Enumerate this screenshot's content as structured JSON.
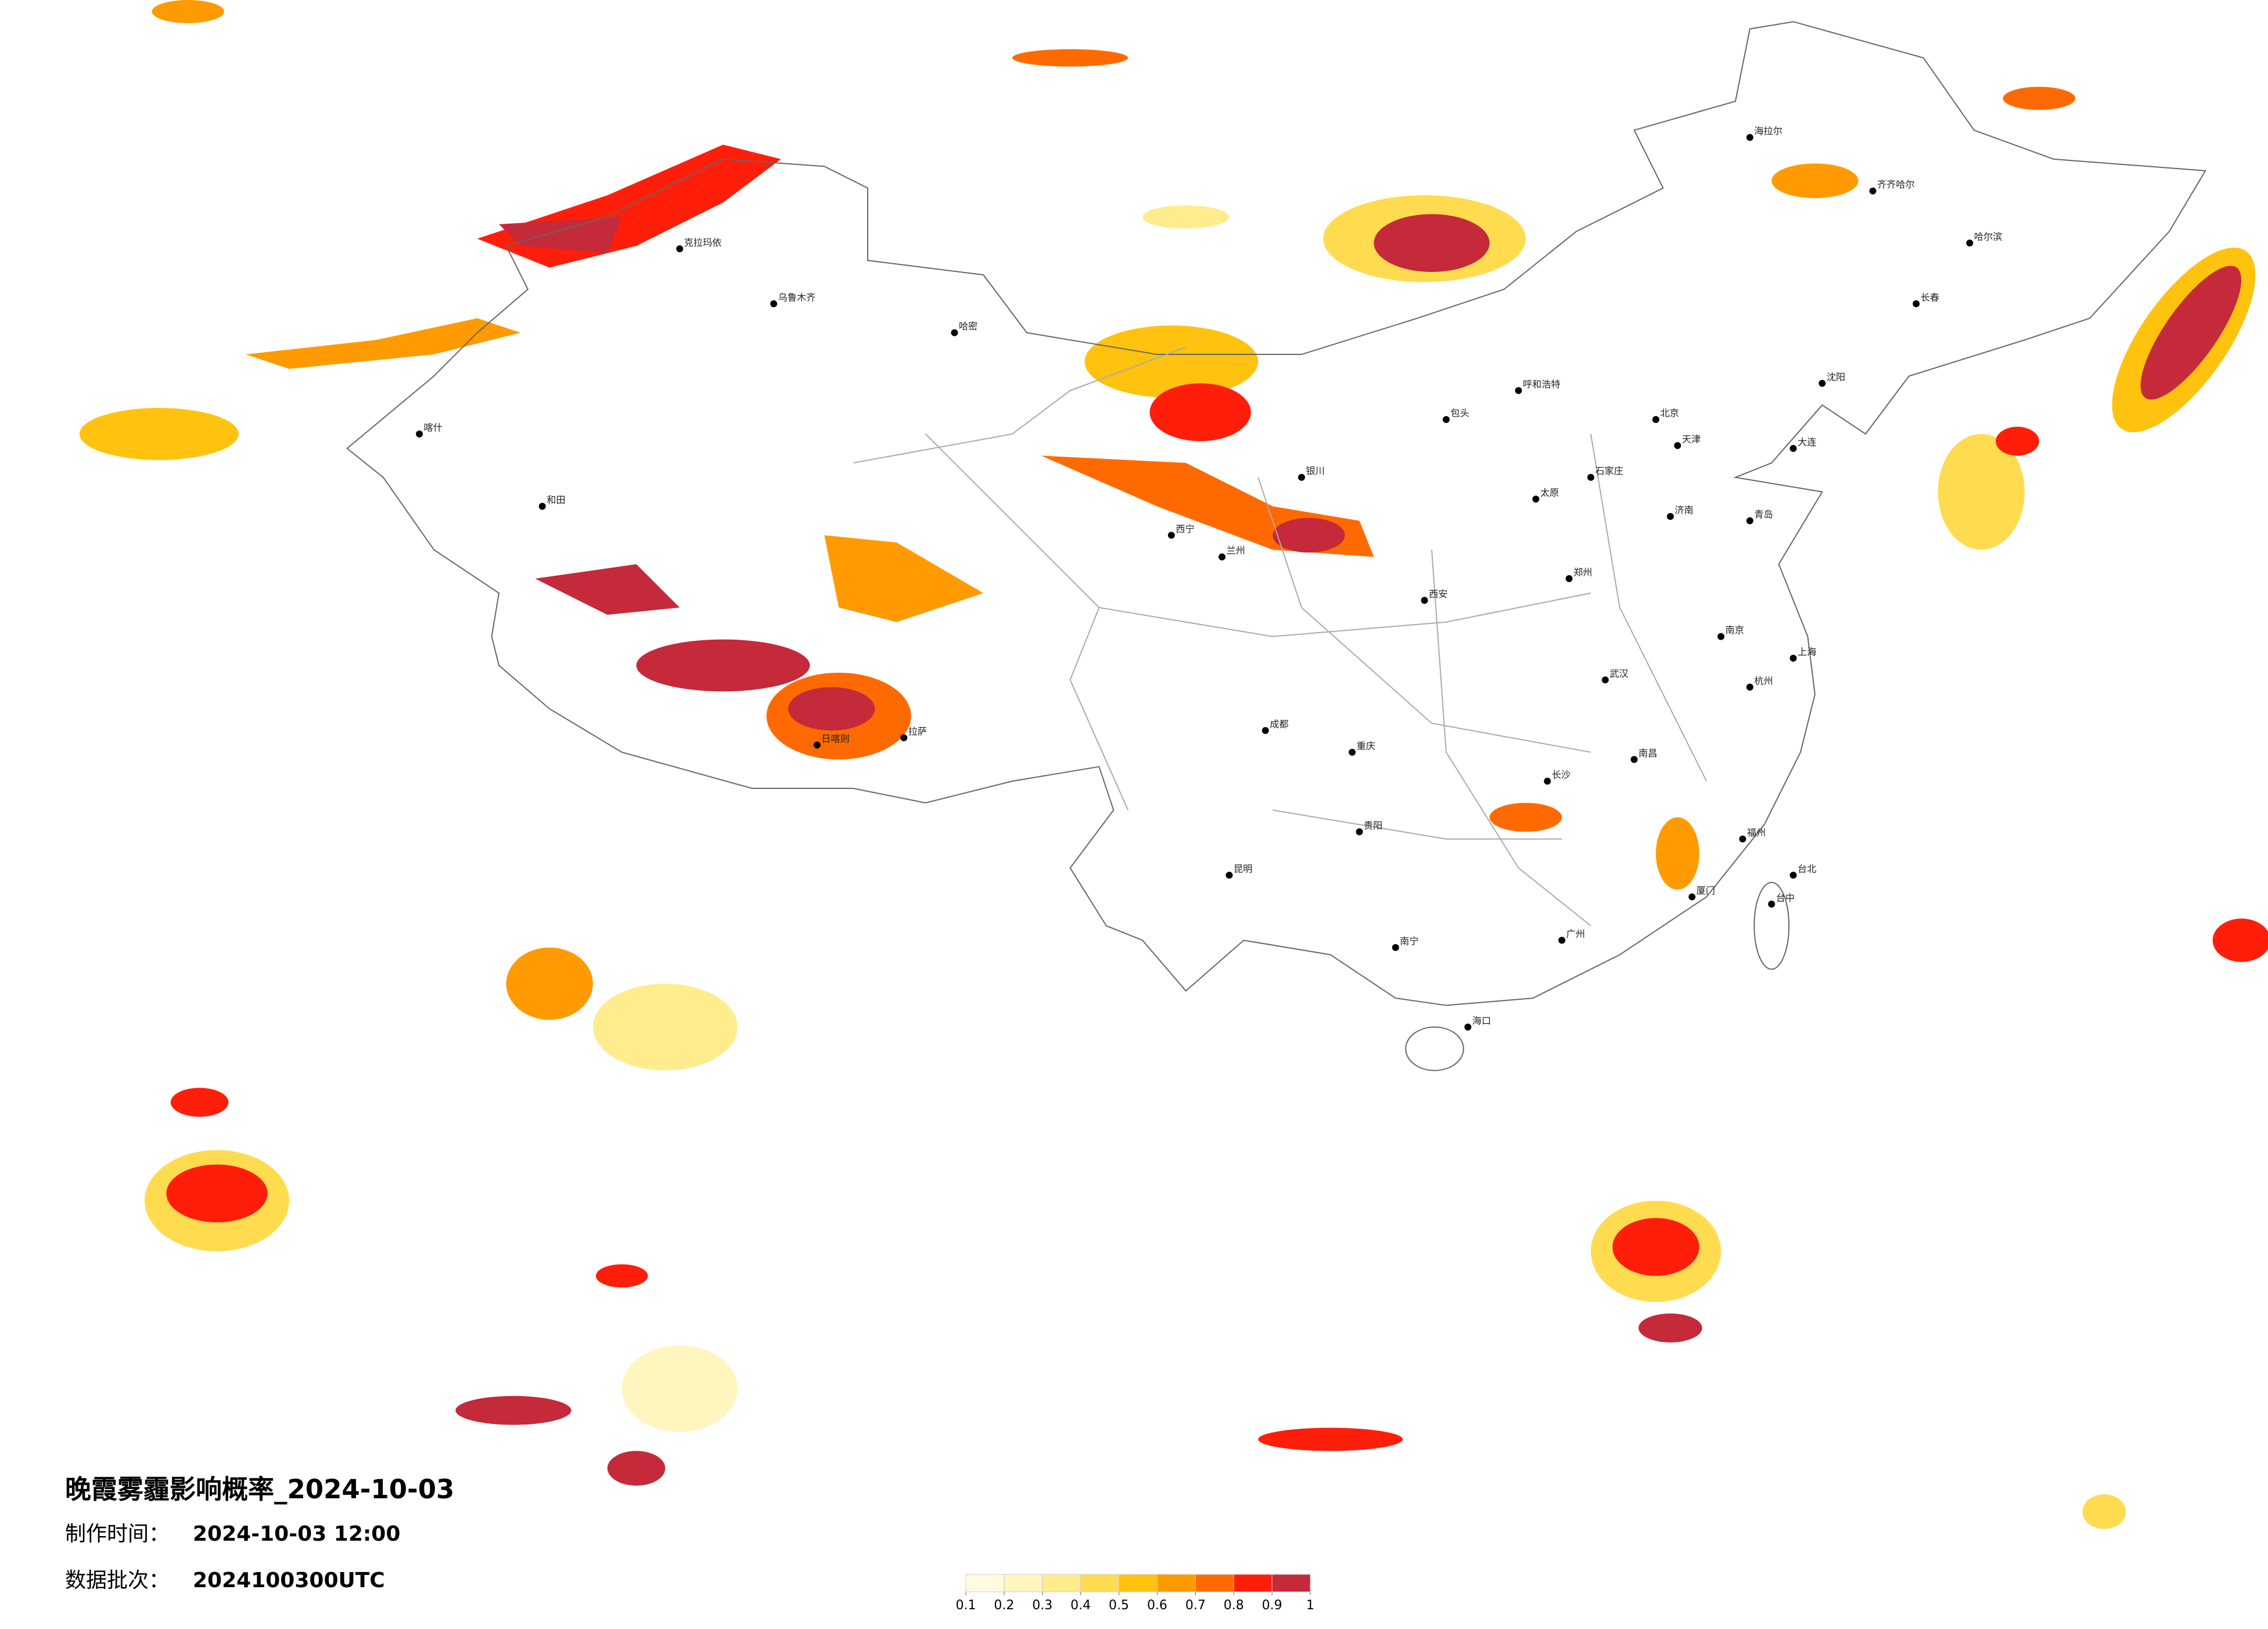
{
  "header": {
    "title": "晚霞雾霾影响概率_2024-10-03",
    "made_label": "制作时间：",
    "made_time": "2024-10-03 12:00",
    "batch_label": "数据批次：",
    "batch": "2024100300UTC"
  },
  "legend": {
    "ticks": [
      0.1,
      0.2,
      0.3,
      0.4,
      0.5,
      0.6,
      0.7,
      0.8,
      0.9,
      1
    ],
    "colors": [
      "#fffbe3",
      "#fff5bf",
      "#ffec8c",
      "#ffdb50",
      "#ffc20e",
      "#ff9a00",
      "#ff6a00",
      "#ff1e0a",
      "#c42a3a"
    ]
  },
  "cities": [
    "哈尔滨",
    "北京",
    "天津",
    "石家庄",
    "太原",
    "济南",
    "郑州",
    "西安",
    "武汉",
    "长沙",
    "南昌",
    "南京",
    "上海",
    "杭州",
    "福州",
    "广州",
    "南宁",
    "昆明",
    "贵阳",
    "成都",
    "重庆",
    "兰州",
    "西宁",
    "银川",
    "呼和浩特",
    "乌鲁木齐",
    "拉萨",
    "沈阳",
    "长春",
    "海口",
    "台北",
    "和田",
    "喀什",
    "克拉玛依",
    "海拉尔",
    "齐齐哈尔",
    "包头",
    "大连",
    "青岛",
    "厦门",
    "台中",
    "日喀则",
    "哈密"
  ]
}
